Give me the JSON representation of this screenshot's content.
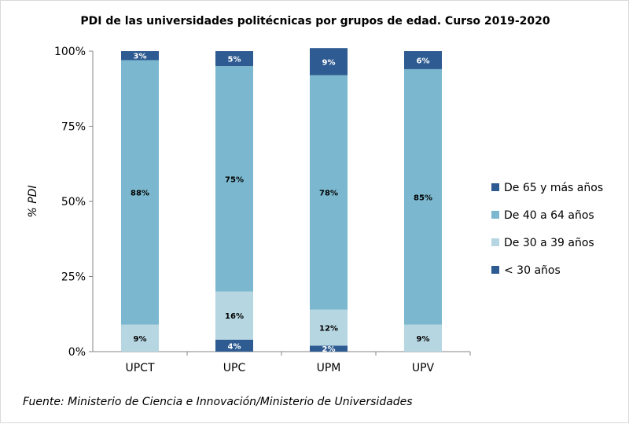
{
  "chart_data": {
    "type": "bar",
    "stacked": true,
    "title": "PDI de las universidades politécnicas por grupos de edad. Curso 2019-2020",
    "ylabel": "% PDI",
    "xlabel": "",
    "ylim": [
      0,
      100
    ],
    "yticks": [
      "0%",
      "25%",
      "50%",
      "75%",
      "100%"
    ],
    "categories": [
      "UPCT",
      "UPC",
      "UPM",
      "UPV"
    ],
    "series": [
      {
        "name": "< 30 años",
        "color": "#2e5b91",
        "values": [
          0,
          4,
          2,
          0
        ],
        "labels": [
          "",
          "4%",
          "2%",
          ""
        ]
      },
      {
        "name": "De 30 a 39 años",
        "color": "#b6d6e2",
        "values": [
          9,
          16,
          12,
          9
        ],
        "labels": [
          "9%",
          "16%",
          "12%",
          "9%"
        ]
      },
      {
        "name": "De 40 a 64 años",
        "color": "#7bb8cf",
        "values": [
          88,
          75,
          78,
          85
        ],
        "labels": [
          "88%",
          "75%",
          "78%",
          "85%"
        ]
      },
      {
        "name": "De 65 y más años",
        "color": "#2e5b91",
        "values": [
          3,
          5,
          9,
          6
        ],
        "labels": [
          "3%",
          "5%",
          "9%",
          "6%"
        ]
      }
    ],
    "legend_position": "right",
    "grid": false,
    "source": "Fuente: Ministerio de Ciencia e Innovación/Ministerio de Universidades"
  }
}
